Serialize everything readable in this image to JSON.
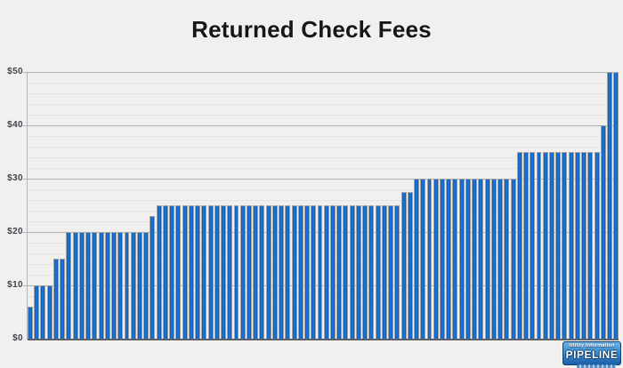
{
  "chart_data": {
    "type": "bar",
    "title": "Returned Check Fees",
    "xlabel": "",
    "ylabel": "",
    "ylim": [
      0,
      50
    ],
    "ytick_interval": 10,
    "minor_gridline_interval": 2,
    "ytick_labels": [
      "$0",
      "$10",
      "$20",
      "$30",
      "$40",
      "$50"
    ],
    "grid": "on",
    "legend": "none",
    "bar_color": "#1a73d5",
    "values": [
      6,
      10,
      10,
      10,
      15,
      15,
      20,
      20,
      20,
      20,
      20,
      20,
      20,
      20,
      20,
      20,
      20,
      20,
      20,
      23,
      25,
      25,
      25,
      25,
      25,
      25,
      25,
      25,
      25,
      25,
      25,
      25,
      25,
      25,
      25,
      25,
      25,
      25,
      25,
      25,
      25,
      25,
      25,
      25,
      25,
      25,
      25,
      25,
      25,
      25,
      25,
      25,
      25,
      25,
      25,
      25,
      25,
      25,
      27.5,
      27.5,
      30,
      30,
      30,
      30,
      30,
      30,
      30,
      30,
      30,
      30,
      30,
      30,
      30,
      30,
      30,
      30,
      35,
      35,
      35,
      35,
      35,
      35,
      35,
      35,
      35,
      35,
      35,
      35,
      35,
      40,
      50,
      50
    ]
  },
  "logo": {
    "line1": "Utility Information",
    "line2": "PIPELINE"
  }
}
